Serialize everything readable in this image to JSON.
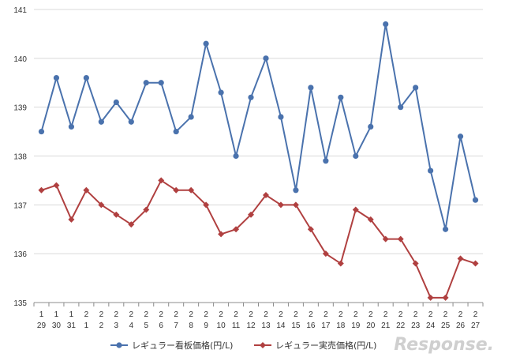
{
  "chart_data": {
    "type": "line",
    "x_top": [
      "1",
      "1",
      "1",
      "2",
      "2",
      "2",
      "2",
      "2",
      "2",
      "2",
      "2",
      "2",
      "2",
      "2",
      "2",
      "2",
      "2",
      "2",
      "2",
      "2",
      "2",
      "2",
      "2",
      "2",
      "2",
      "2",
      "2",
      "2",
      "2",
      "2"
    ],
    "x_bottom": [
      "29",
      "30",
      "31",
      "1",
      "2",
      "3",
      "4",
      "5",
      "6",
      "7",
      "8",
      "9",
      "10",
      "11",
      "12",
      "13",
      "14",
      "15",
      "16",
      "17",
      "18",
      "19",
      "20",
      "21",
      "22",
      "23",
      "24",
      "25",
      "26",
      "27"
    ],
    "ylim": [
      135,
      141
    ],
    "yticks": [
      "135",
      "136",
      "137",
      "138",
      "139",
      "140",
      "141"
    ],
    "grid": true,
    "legend_position": "bottom",
    "series": [
      {
        "name": "レギュラー看板価格(円/L)",
        "color": "#4a72ad",
        "marker": "circle",
        "values": [
          138.5,
          139.6,
          138.6,
          139.6,
          138.7,
          139.1,
          138.7,
          139.5,
          139.5,
          138.5,
          138.8,
          140.3,
          139.3,
          138.0,
          139.2,
          140.0,
          138.8,
          137.3,
          139.4,
          137.9,
          139.2,
          138.0,
          138.6,
          140.7,
          139.0,
          139.4,
          137.7,
          136.5,
          138.4,
          137.1
        ]
      },
      {
        "name": "レギュラー実売価格(円/L)",
        "color": "#b04040",
        "marker": "diamond",
        "values": [
          137.3,
          137.4,
          136.7,
          137.3,
          137.0,
          136.8,
          136.6,
          136.9,
          137.5,
          137.3,
          137.3,
          137.0,
          136.4,
          136.5,
          136.8,
          137.2,
          137.0,
          137.0,
          136.5,
          136.0,
          135.8,
          136.9,
          136.7,
          136.3,
          136.3,
          135.8,
          135.1,
          135.1,
          135.9,
          135.8
        ]
      }
    ]
  },
  "watermark": "Response."
}
